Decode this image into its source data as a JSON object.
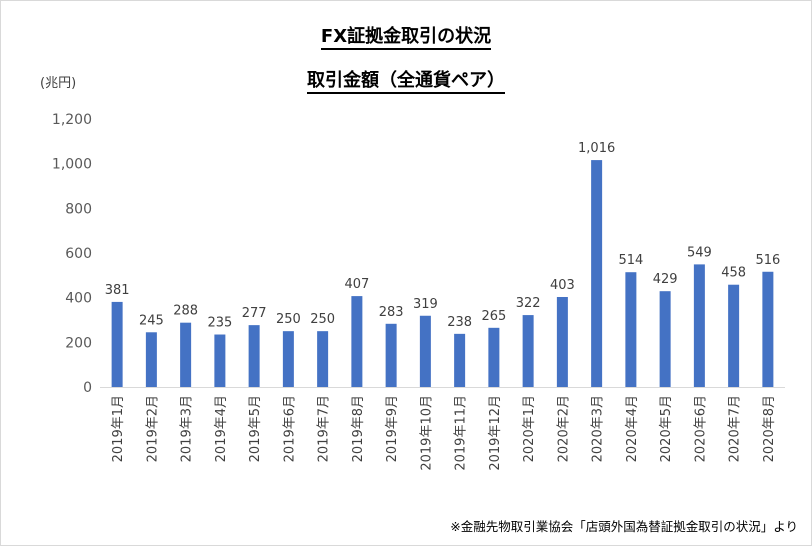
{
  "chart_data": {
    "type": "bar",
    "title": "FX証拠金取引の状況",
    "subtitle": "取引金額（全通貨ペア）",
    "unit_label": "(兆円)",
    "source_note": "※金融先物取引業協会「店頭外国為替証拠金取引の状況」より",
    "categories": [
      "2019年1月",
      "2019年2月",
      "2019年3月",
      "2019年4月",
      "2019年5月",
      "2019年6月",
      "2019年7月",
      "2019年8月",
      "2019年9月",
      "2019年10月",
      "2019年11月",
      "2019年12月",
      "2020年1月",
      "2020年2月",
      "2020年3月",
      "2020年4月",
      "2020年5月",
      "2020年6月",
      "2020年7月",
      "2020年8月"
    ],
    "values": [
      381,
      245,
      288,
      235,
      277,
      250,
      250,
      407,
      283,
      319,
      238,
      265,
      322,
      403,
      1016,
      514,
      429,
      549,
      458,
      516
    ],
    "data_labels": [
      "381",
      "245",
      "288",
      "235",
      "277",
      "250",
      "250",
      "407",
      "283",
      "319",
      "238",
      "265",
      "322",
      "403",
      "1,016",
      "514",
      "429",
      "549",
      "458",
      "516"
    ],
    "yticks": [
      "0",
      "200",
      "400",
      "600",
      "800",
      "1,000",
      "1,200"
    ],
    "ylim": [
      0,
      1200
    ],
    "grid": false,
    "bar_color": "#4472c4"
  }
}
